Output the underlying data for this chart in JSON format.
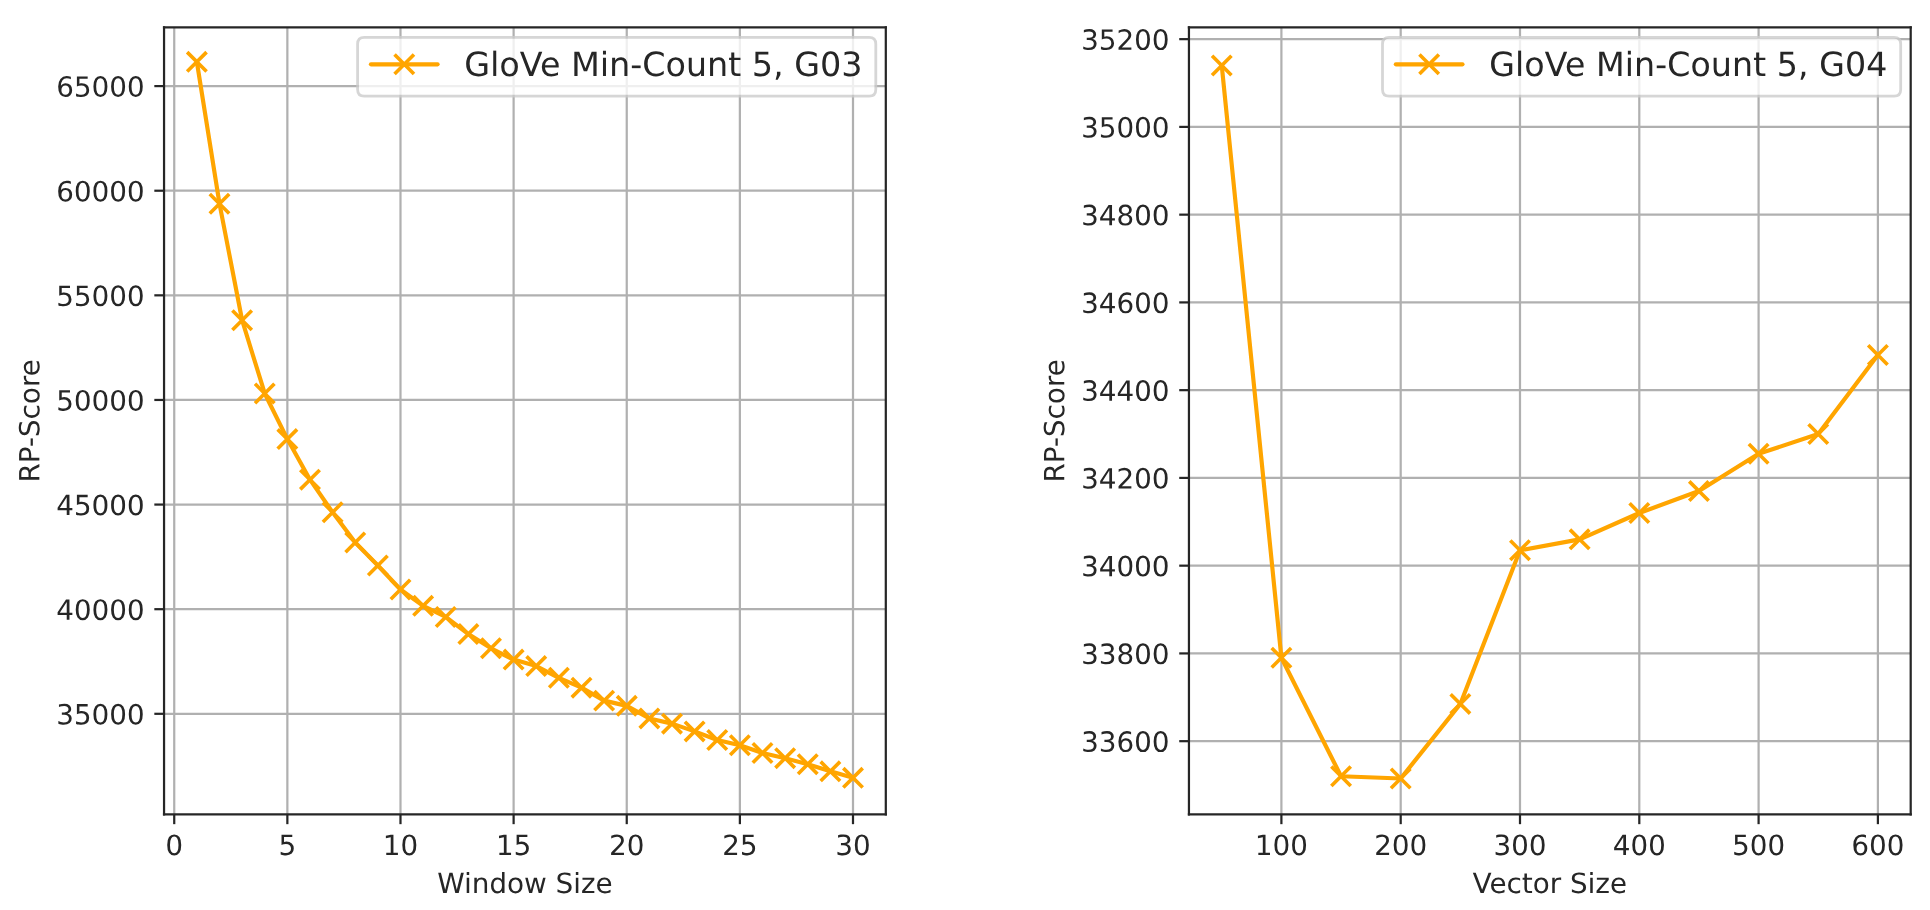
{
  "chart_data": [
    {
      "type": "line",
      "xlabel": "Window Size",
      "ylabel": "RP-Score",
      "x": [
        1,
        2,
        3,
        4,
        5,
        6,
        7,
        8,
        9,
        10,
        11,
        12,
        13,
        14,
        15,
        16,
        17,
        18,
        19,
        20,
        21,
        22,
        23,
        24,
        25,
        26,
        27,
        28,
        29,
        30
      ],
      "series": [
        {
          "name": "GloVe Min-Count 5, G03",
          "color": "#ffa500",
          "values": [
            66160,
            59380,
            53810,
            50310,
            48130,
            46190,
            44630,
            43190,
            42090,
            40940,
            40160,
            39630,
            38810,
            38130,
            37590,
            37280,
            36720,
            36250,
            35630,
            35380,
            34780,
            34530,
            34160,
            33750,
            33500,
            33130,
            32880,
            32590,
            32250,
            31940
          ]
        }
      ],
      "xlim": [
        -0.45,
        31.45
      ],
      "xticks": [
        0,
        5,
        10,
        15,
        20,
        25,
        30
      ],
      "ylim": [
        30190,
        67810
      ],
      "yticks": [
        35000,
        40000,
        45000,
        50000,
        55000,
        60000,
        65000
      ],
      "grid": true,
      "legend": "top right",
      "marker": "cross",
      "line_style": "solid"
    },
    {
      "type": "line",
      "xlabel": "Vector Size",
      "ylabel": "RP-Score",
      "x": [
        50,
        100,
        150,
        200,
        250,
        300,
        350,
        400,
        450,
        500,
        550,
        600
      ],
      "series": [
        {
          "name": "GloVe Min-Count 5, G04",
          "color": "#ffa500",
          "values": [
            35140,
            33790,
            33520,
            33515,
            33685,
            34035,
            34060,
            34120,
            34170,
            34255,
            34300,
            34480
          ]
        }
      ],
      "xlim": [
        22.5,
        627.5
      ],
      "xticks": [
        100,
        200,
        300,
        400,
        500,
        600
      ],
      "ylim": [
        33433,
        35227
      ],
      "yticks": [
        33600,
        33800,
        34000,
        34200,
        34400,
        34600,
        34800,
        35000,
        35200
      ],
      "grid": true,
      "legend": "top right",
      "marker": "cross",
      "line_style": "solid"
    }
  ]
}
